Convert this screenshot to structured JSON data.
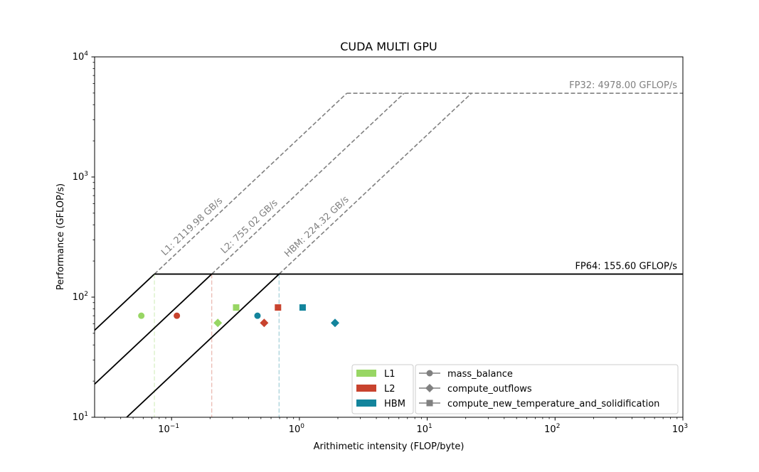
{
  "chart_data": {
    "type": "scatter",
    "title": "CUDA MULTI GPU",
    "xlabel": "Arithimetic intensity (FLOP/byte)",
    "ylabel": "Performance (GFLOP/s)",
    "xscale": "log",
    "yscale": "log",
    "xlim": [
      0.025,
      1000
    ],
    "ylim": [
      10,
      10000
    ],
    "x_ticks": [
      {
        "value": 0.1,
        "base": "10",
        "exp": "−1"
      },
      {
        "value": 1,
        "base": "10",
        "exp": "0"
      },
      {
        "value": 10,
        "base": "10",
        "exp": "1"
      },
      {
        "value": 100,
        "base": "10",
        "exp": "2"
      },
      {
        "value": 1000,
        "base": "10",
        "exp": "3"
      }
    ],
    "y_ticks": [
      {
        "value": 10,
        "base": "10",
        "exp": "1"
      },
      {
        "value": 100,
        "base": "10",
        "exp": "2"
      },
      {
        "value": 1000,
        "base": "10",
        "exp": "3"
      },
      {
        "value": 10000,
        "base": "10",
        "exp": "4"
      }
    ],
    "ceilings": [
      {
        "label": "FP32: 4978.00 GFLOP/s",
        "value": 4978.0,
        "style": "dashed",
        "color": "#808080"
      },
      {
        "label": "FP64: 155.60 GFLOP/s",
        "value": 155.6,
        "style": "solid",
        "color": "#000000"
      }
    ],
    "bandwidths": [
      {
        "name": "L1",
        "label": "L1: 2119.98 GB/s",
        "value": 2119.98,
        "color": "#98d664"
      },
      {
        "name": "L2",
        "label": "L2: 755.02 GB/s",
        "value": 755.02,
        "color": "#c8432e"
      },
      {
        "name": "HBM",
        "label": "HBM: 224.32 GB/s",
        "value": 224.32,
        "color": "#13849c"
      }
    ],
    "kernels": [
      {
        "name": "mass_balance",
        "marker": "circle"
      },
      {
        "name": "compute_outflows",
        "marker": "diamond"
      },
      {
        "name": "compute_new_temperature_and_solidification",
        "marker": "square"
      }
    ],
    "points": [
      {
        "kernel": "mass_balance",
        "level": "L1",
        "x": 0.058,
        "y": 70
      },
      {
        "kernel": "mass_balance",
        "level": "L2",
        "x": 0.11,
        "y": 70
      },
      {
        "kernel": "mass_balance",
        "level": "HBM",
        "x": 0.47,
        "y": 70
      },
      {
        "kernel": "compute_outflows",
        "level": "L1",
        "x": 0.23,
        "y": 61
      },
      {
        "kernel": "compute_outflows",
        "level": "L2",
        "x": 0.53,
        "y": 61
      },
      {
        "kernel": "compute_outflows",
        "level": "HBM",
        "x": 1.9,
        "y": 61
      },
      {
        "kernel": "compute_new_temperature_and_solidification",
        "level": "L1",
        "x": 0.32,
        "y": 82
      },
      {
        "kernel": "compute_new_temperature_and_solidification",
        "level": "L2",
        "x": 0.68,
        "y": 82
      },
      {
        "kernel": "compute_new_temperature_and_solidification",
        "level": "HBM",
        "x": 1.06,
        "y": 82
      }
    ],
    "grid": false,
    "legend_placement": "lower-right",
    "neutral_color": "#808080"
  }
}
